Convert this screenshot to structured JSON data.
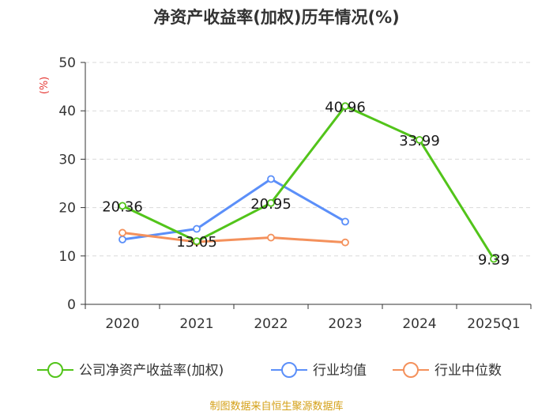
{
  "chart_data": {
    "type": "line",
    "title": "净资产收益率(加权)历年情况(%)",
    "ylabel": "(%)",
    "xlabel": "",
    "ylim": [
      0,
      50
    ],
    "yticks": [
      0,
      10,
      20,
      30,
      40,
      50
    ],
    "categories": [
      "2020",
      "2021",
      "2022",
      "2023",
      "2024",
      "2025Q1"
    ],
    "grid": true,
    "legend_position": "bottom",
    "series": [
      {
        "name": "公司净资产收益率(加权)",
        "color": "#52c41a",
        "values": [
          20.36,
          13.05,
          20.95,
          40.96,
          33.99,
          9.39
        ],
        "labels": [
          "20.36",
          "13.05",
          "20.95",
          "40.96",
          "33.99",
          "9.39"
        ]
      },
      {
        "name": "行业均值",
        "color": "#5b8ff9",
        "values": [
          13.4,
          15.6,
          25.9,
          17.1,
          null,
          null
        ]
      },
      {
        "name": "行业中位数",
        "color": "#f4915c",
        "values": [
          14.8,
          12.9,
          13.8,
          12.8,
          null,
          null
        ]
      }
    ]
  },
  "source": "制图数据来自恒生聚源数据库"
}
